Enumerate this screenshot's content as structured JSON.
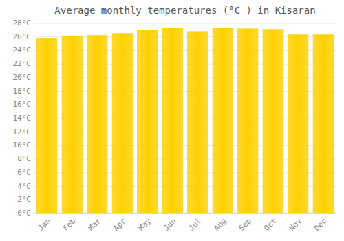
{
  "chart_data": {
    "type": "bar",
    "title": "Average monthly temperatures (°C ) in Kisaran",
    "categories": [
      "Jan",
      "Feb",
      "Mar",
      "Apr",
      "May",
      "Jun",
      "Jul",
      "Aug",
      "Sep",
      "Oct",
      "Nov",
      "Dec"
    ],
    "values": [
      25.8,
      26.1,
      26.2,
      26.5,
      27.0,
      27.3,
      26.8,
      27.3,
      27.2,
      27.1,
      26.3,
      26.3
    ],
    "color": "#FFD000",
    "ylim": [
      0,
      28
    ],
    "yticks": [
      {
        "value": 0,
        "label": "0°C"
      },
      {
        "value": 2,
        "label": "2°C"
      },
      {
        "value": 4,
        "label": "4°C"
      },
      {
        "value": 6,
        "label": "6°C"
      },
      {
        "value": 8,
        "label": "8°C"
      },
      {
        "value": 10,
        "label": "10°C"
      },
      {
        "value": 12,
        "label": "12°C"
      },
      {
        "value": 14,
        "label": "14°C"
      },
      {
        "value": 16,
        "label": "16°C"
      },
      {
        "value": 18,
        "label": "18°C"
      },
      {
        "value": 20,
        "label": "20°C"
      },
      {
        "value": 22,
        "label": "22°C"
      },
      {
        "value": 24,
        "label": "24°C"
      },
      {
        "value": 26,
        "label": "26°C"
      },
      {
        "value": 28,
        "label": "28°C"
      }
    ],
    "grid": true
  }
}
